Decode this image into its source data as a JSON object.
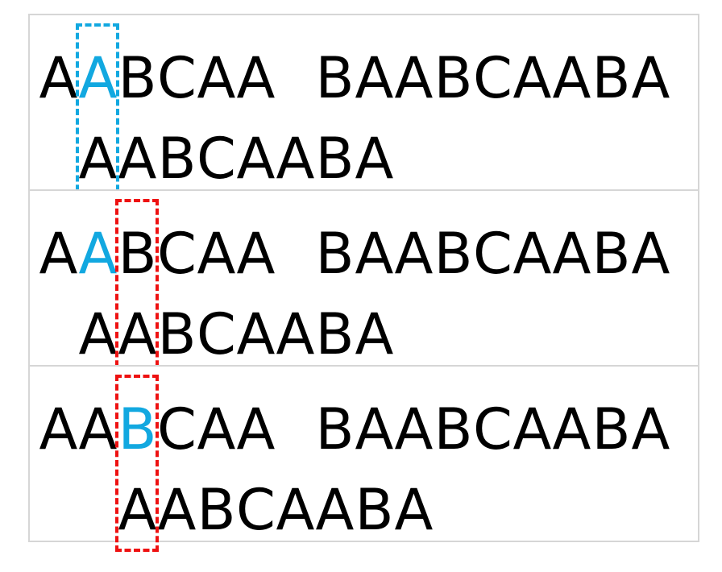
{
  "text": "AABCAA BAABCAABA",
  "pattern": "AABCAABA",
  "colors": {
    "match": "#12a8e0",
    "mismatch": "#ee1111",
    "text": "#000000",
    "grid": "#d6d6d6"
  },
  "steps": [
    {
      "pattern_offset": 1,
      "highlight_text_indices": [
        1
      ],
      "box_index": 1,
      "box_color": "blue"
    },
    {
      "pattern_offset": 1,
      "highlight_text_indices": [
        1
      ],
      "box_index": 2,
      "box_color": "red"
    },
    {
      "pattern_offset": 2,
      "highlight_text_indices": [
        2
      ],
      "box_index": 2,
      "box_color": "red"
    }
  ]
}
